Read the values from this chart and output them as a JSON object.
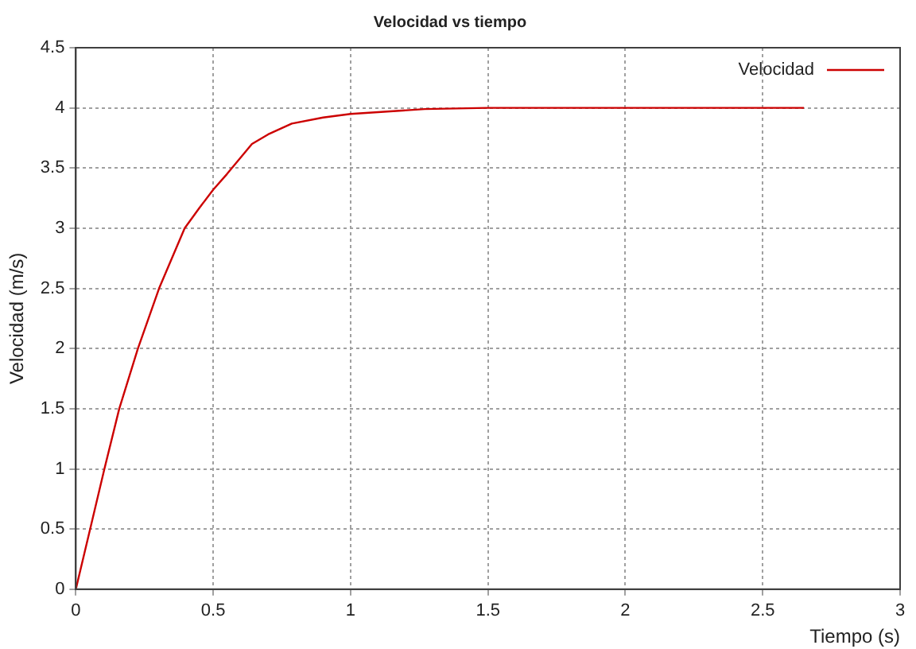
{
  "chart_data": {
    "type": "line",
    "title": "Velocidad vs tiempo",
    "xlabel": "Tiempo (s)",
    "ylabel": "Velocidad (m/s)",
    "series": [
      {
        "name": "Velocidad",
        "color": "#cc0000",
        "x": [
          0,
          0.052,
          0.104,
          0.158,
          0.226,
          0.303,
          0.396,
          0.45,
          0.5,
          0.55,
          0.641,
          0.7,
          0.786,
          0.9,
          1.0,
          1.27,
          1.5,
          2.0,
          2.65
        ],
        "values": [
          0,
          0.5,
          1.0,
          1.5,
          2.0,
          2.5,
          3.0,
          3.17,
          3.32,
          3.45,
          3.7,
          3.78,
          3.87,
          3.92,
          3.95,
          3.99,
          4.0,
          4.0,
          4.0
        ]
      }
    ],
    "xlim": [
      0,
      3
    ],
    "xticks": [
      0,
      0.5,
      1,
      1.5,
      2,
      2.5,
      3
    ],
    "ylim": [
      0,
      4.5
    ],
    "yticks": [
      0,
      0.5,
      1,
      1.5,
      2,
      2.5,
      3,
      3.5,
      4,
      4.5
    ],
    "grid": true,
    "legend": "top right",
    "marker": "none",
    "line_style": "solid"
  }
}
